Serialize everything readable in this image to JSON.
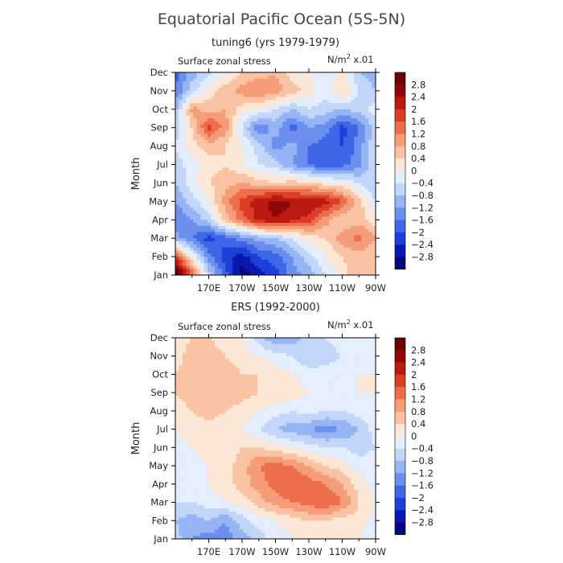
{
  "figure": {
    "title": "Equatorial Pacific Ocean (5S-5N)"
  },
  "colorbar": {
    "levels": [
      -2.8,
      -2.4,
      -2,
      -1.6,
      -1.2,
      -0.8,
      -0.4,
      0,
      0.4,
      0.8,
      1.2,
      1.6,
      2,
      2.4,
      2.8
    ],
    "level_labels": [
      "-2.8",
      "-2.4",
      "-2",
      "-1.6",
      "-1.2",
      "-0.8",
      "-0.4",
      "0",
      "0.4",
      "0.8",
      "1.2",
      "1.6",
      "2",
      "2.4",
      "2.8"
    ],
    "colors": [
      "#08087a",
      "#0a18b0",
      "#1e3fd8",
      "#3f66e6",
      "#6a8fee",
      "#97b4f4",
      "#c2d6fa",
      "#e4eefc",
      "#fde8d8",
      "#fac3a3",
      "#f59c78",
      "#ec6e4c",
      "#dc3d25",
      "#bb1a10",
      "#8e0606",
      "#6a0000"
    ]
  },
  "chart_data": [
    {
      "type": "heatmap",
      "panel_title": "tuning6 (yrs 1979-1979)",
      "variable_label": "Surface zonal stress",
      "units_label": "N/m",
      "units_exp": "2",
      "units_scale": " x.01",
      "ylabel": "Month",
      "xlabel": "",
      "x_tick_labels": [
        "170E",
        "170W",
        "150W",
        "130W",
        "110W",
        "90W"
      ],
      "x_tick_lons": [
        170,
        190,
        210,
        230,
        250,
        270
      ],
      "xlim": [
        150,
        270
      ],
      "y_tick_labels": [
        "Jan",
        "Feb",
        "Mar",
        "Apr",
        "May",
        "Jun",
        "Jul",
        "Aug",
        "Sep",
        "Oct",
        "Nov",
        "Dec"
      ],
      "x": [
        150,
        160,
        170,
        180,
        190,
        200,
        210,
        220,
        230,
        240,
        250,
        260,
        270
      ],
      "y": [
        "Jan",
        "Feb",
        "Mar",
        "Apr",
        "May",
        "Jun",
        "Jul",
        "Aug",
        "Sep",
        "Oct",
        "Nov",
        "Dec"
      ],
      "z": [
        [
          3.4,
          1.6,
          -0.6,
          -1.8,
          -3.0,
          -2.6,
          -2.2,
          -1.4,
          -1.0,
          -0.4,
          0.2,
          0.8,
          0.4
        ],
        [
          1.8,
          0.0,
          -1.4,
          -2.2,
          -2.6,
          -2.0,
          -1.8,
          -1.2,
          -0.6,
          0.0,
          0.4,
          0.6,
          0.4
        ],
        [
          -1.0,
          -1.6,
          -2.2,
          -1.8,
          -1.4,
          -1.0,
          -0.8,
          -0.4,
          0.2,
          0.4,
          1.0,
          1.4,
          0.8
        ],
        [
          -1.6,
          -1.2,
          -0.6,
          0.6,
          1.4,
          2.2,
          2.4,
          2.2,
          1.8,
          1.0,
          0.4,
          0.6,
          0.2
        ],
        [
          -1.2,
          -0.6,
          0.0,
          1.0,
          1.8,
          2.2,
          2.6,
          2.4,
          2.4,
          2.2,
          1.6,
          0.6,
          -0.4
        ],
        [
          -0.8,
          -0.2,
          0.4,
          0.6,
          0.8,
          0.6,
          0.4,
          0.6,
          0.4,
          0.2,
          0.0,
          -0.4,
          -0.8
        ],
        [
          -0.6,
          -0.2,
          0.2,
          0.4,
          0.0,
          -0.4,
          -0.6,
          -1.2,
          -1.6,
          -2.0,
          -1.8,
          -1.4,
          -0.4
        ],
        [
          -0.4,
          0.2,
          0.6,
          0.4,
          0.0,
          -0.6,
          -1.4,
          -1.0,
          -1.6,
          -1.8,
          -2.0,
          -1.4,
          -0.4
        ],
        [
          -0.6,
          0.4,
          1.8,
          1.0,
          -0.4,
          -1.6,
          -1.0,
          -1.8,
          -1.2,
          -1.4,
          -2.2,
          -1.6,
          -0.6
        ],
        [
          -1.0,
          1.0,
          0.6,
          0.8,
          0.2,
          0.0,
          -0.4,
          -0.8,
          -0.4,
          -0.6,
          -0.8,
          -0.6,
          -0.2
        ],
        [
          -1.6,
          -0.6,
          0.2,
          0.6,
          1.0,
          1.2,
          1.0,
          0.6,
          0.2,
          -0.2,
          0.4,
          -0.4,
          -0.8
        ],
        [
          -1.8,
          -1.0,
          -0.6,
          0.0,
          0.4,
          0.6,
          0.8,
          0.2,
          0.0,
          -0.4,
          0.2,
          -0.8,
          -1.0
        ]
      ]
    },
    {
      "type": "heatmap",
      "panel_title": "ERS (1992-2000)",
      "variable_label": "Surface zonal stress",
      "units_label": "N/m",
      "units_exp": "2",
      "units_scale": " x.01",
      "ylabel": "Month",
      "xlabel": "",
      "x_tick_labels": [
        "170E",
        "170W",
        "150W",
        "130W",
        "110W",
        "90W"
      ],
      "x_tick_lons": [
        170,
        190,
        210,
        230,
        250,
        270
      ],
      "xlim": [
        150,
        270
      ],
      "y_tick_labels": [
        "Jan",
        "Feb",
        "Mar",
        "Apr",
        "May",
        "Jun",
        "Jul",
        "Aug",
        "Sep",
        "Oct",
        "Nov",
        "Dec"
      ],
      "x": [
        150,
        160,
        170,
        180,
        190,
        200,
        210,
        220,
        230,
        240,
        250,
        260,
        270
      ],
      "y": [
        "Jan",
        "Feb",
        "Mar",
        "Apr",
        "May",
        "Jun",
        "Jul",
        "Aug",
        "Sep",
        "Oct",
        "Nov",
        "Dec"
      ],
      "z": [
        [
          -0.6,
          -1.2,
          -1.4,
          -1.4,
          -1.0,
          -0.6,
          -0.2,
          0.0,
          0.2,
          0.2,
          0.2,
          0.0,
          -0.2
        ],
        [
          -0.8,
          -1.0,
          -0.8,
          -1.2,
          -0.6,
          -0.2,
          0.0,
          0.2,
          0.4,
          0.4,
          0.2,
          0.2,
          -0.2
        ],
        [
          -0.4,
          -0.4,
          -0.2,
          0.0,
          0.2,
          0.6,
          1.0,
          1.2,
          1.4,
          1.6,
          1.2,
          0.4,
          0.0
        ],
        [
          -0.2,
          -0.2,
          0.0,
          0.2,
          0.6,
          1.0,
          1.4,
          1.6,
          1.4,
          1.2,
          0.8,
          0.2,
          -0.2
        ],
        [
          -0.2,
          -0.2,
          0.0,
          0.2,
          0.6,
          1.2,
          1.4,
          1.2,
          0.8,
          0.4,
          0.2,
          -0.2,
          -0.2
        ],
        [
          -0.2,
          0.0,
          0.2,
          0.2,
          0.4,
          0.4,
          0.2,
          0.0,
          -0.2,
          -0.4,
          -0.4,
          -0.6,
          -0.4
        ],
        [
          0.0,
          0.2,
          0.2,
          0.2,
          0.0,
          -0.4,
          -0.8,
          -1.0,
          -1.2,
          -1.4,
          -1.2,
          -0.8,
          -0.2
        ],
        [
          0.2,
          0.4,
          0.6,
          0.4,
          0.2,
          0.0,
          -0.2,
          -0.4,
          -0.2,
          -0.4,
          -0.4,
          -0.2,
          0.0
        ],
        [
          0.4,
          0.6,
          0.8,
          0.8,
          0.6,
          0.4,
          0.4,
          0.2,
          0.0,
          -0.2,
          -0.2,
          0.0,
          0.0
        ],
        [
          0.4,
          0.6,
          0.6,
          0.6,
          0.4,
          0.4,
          0.2,
          0.0,
          -0.2,
          -0.2,
          -0.2,
          0.0,
          0.0
        ],
        [
          0.2,
          0.6,
          0.6,
          0.4,
          0.2,
          0.0,
          -0.2,
          -0.4,
          -0.8,
          -0.6,
          -0.4,
          -0.2,
          0.0
        ],
        [
          0.2,
          0.4,
          0.4,
          0.2,
          0.0,
          -0.6,
          -1.2,
          -1.0,
          -0.6,
          -0.4,
          -0.2,
          0.0,
          0.0
        ]
      ]
    }
  ]
}
